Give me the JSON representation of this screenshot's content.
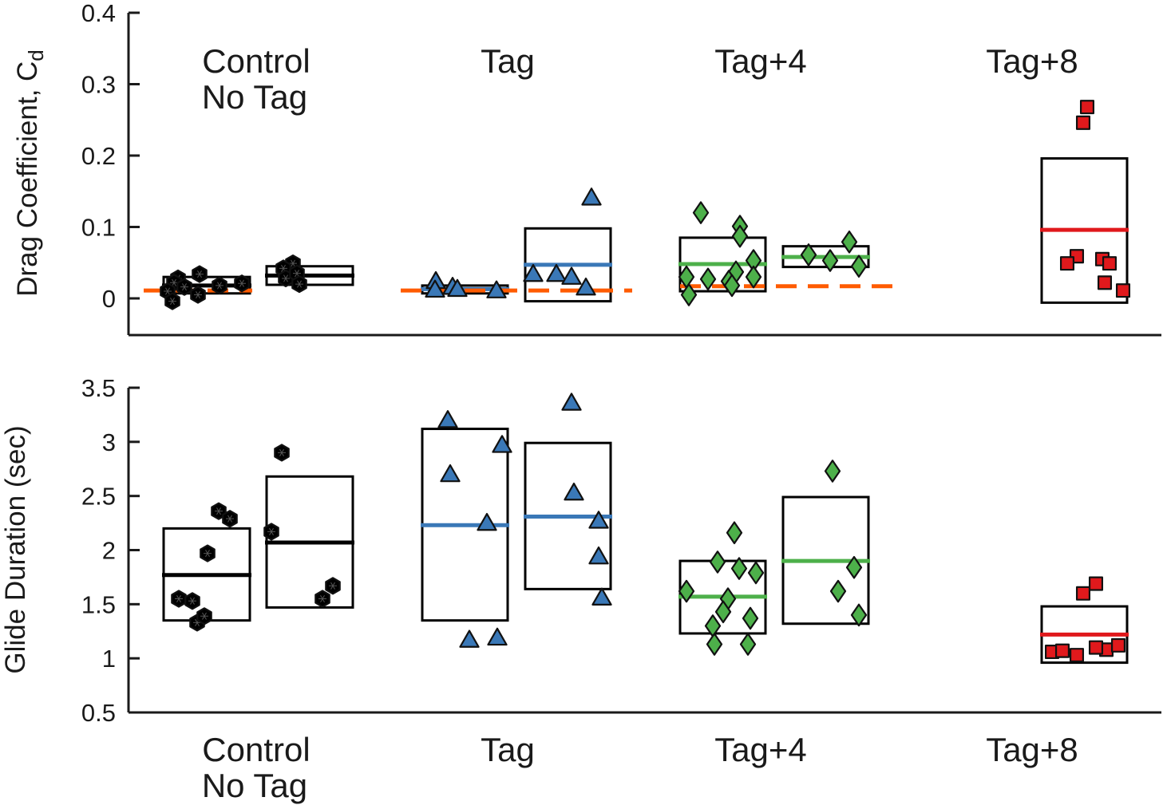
{
  "colors": {
    "control": "#000000",
    "tag": "#3a78b7",
    "tag4": "#4db04a",
    "tag8": "#e0191c",
    "reference": "#ff5b00",
    "marker_edge": "#111111"
  },
  "group_labels": [
    {
      "id": "control",
      "lines": [
        "Control",
        "No Tag"
      ]
    },
    {
      "id": "tag",
      "lines": [
        "Tag"
      ]
    },
    {
      "id": "tag4",
      "lines": [
        "Tag+4"
      ]
    },
    {
      "id": "tag8",
      "lines": [
        "Tag+8"
      ]
    }
  ],
  "chart_data": [
    {
      "type": "scatter",
      "panel": "top",
      "title": "",
      "xlabel": "",
      "ylabel": "Drag Coefficient, C",
      "ylabel_subscript": "d",
      "ylim": [
        -0.05,
        0.4
      ],
      "yticks": [
        0,
        0.1,
        0.2,
        0.3,
        0.4
      ],
      "ytick_labels": [
        "0",
        "0.1",
        "0.2",
        "0.3",
        "0.4"
      ],
      "grid": false,
      "reference_lines": [
        {
          "group": "control",
          "value": 0.011
        },
        {
          "group": "tag",
          "value": 0.011
        },
        {
          "group": "tag4",
          "value": 0.017
        }
      ],
      "series": [
        {
          "group": "control",
          "subgroup": 1,
          "marker": "hexagram",
          "mean": 0.018,
          "box": [
            0.007,
            0.03
          ],
          "points": [
            0.028,
            0.022,
            0.016,
            0.01,
            0.005,
            -0.004,
            0.034,
            0.018,
            0.021
          ]
        },
        {
          "group": "control",
          "subgroup": 2,
          "marker": "hexagram",
          "mean": 0.032,
          "box": [
            0.019,
            0.045
          ],
          "points": [
            0.049,
            0.042,
            0.028,
            0.035,
            0.02
          ]
        },
        {
          "group": "tag",
          "subgroup": 1,
          "marker": "triangle",
          "mean": 0.013,
          "box": [
            0.007,
            0.018
          ],
          "points": [
            0.024,
            0.012,
            0.016,
            0.013,
            0.011
          ]
        },
        {
          "group": "tag",
          "subgroup": 2,
          "marker": "triangle",
          "mean": 0.047,
          "box": [
            -0.004,
            0.098
          ],
          "points": [
            0.141,
            0.034,
            0.034,
            0.015,
            0.03
          ]
        },
        {
          "group": "tag4",
          "subgroup": 1,
          "marker": "diamond",
          "mean": 0.048,
          "box": [
            0.01,
            0.085
          ],
          "points": [
            0.12,
            0.101,
            0.087,
            0.053,
            0.037,
            0.03,
            0.03,
            0.024,
            0.027,
            0.018,
            0.005
          ]
        },
        {
          "group": "tag4",
          "subgroup": 2,
          "marker": "diamond",
          "mean": 0.058,
          "box": [
            0.044,
            0.073
          ],
          "points": [
            0.061,
            0.053,
            0.079,
            0.045
          ]
        },
        {
          "group": "tag8",
          "subgroup": 1,
          "marker": "square",
          "mean": 0.096,
          "box": [
            -0.006,
            0.196
          ],
          "points": [
            0.268,
            0.246,
            0.059,
            0.049,
            0.055,
            0.049,
            0.022,
            0.011
          ]
        }
      ]
    },
    {
      "type": "scatter",
      "panel": "bottom",
      "title": "",
      "xlabel": "",
      "ylabel": "Glide Duration (sec)",
      "ylim": [
        0.5,
        3.5
      ],
      "yticks": [
        0.5,
        1,
        1.5,
        2,
        2.5,
        3,
        3.5
      ],
      "ytick_labels": [
        "0.5",
        "1",
        "1.5",
        "2",
        "2.5",
        "3",
        "3.5"
      ],
      "grid": false,
      "series": [
        {
          "group": "control",
          "subgroup": 1,
          "marker": "hexagram",
          "mean": 1.77,
          "box": [
            1.35,
            2.2
          ],
          "points": [
            2.36,
            2.29,
            1.97,
            1.55,
            1.53,
            1.33,
            1.39
          ]
        },
        {
          "group": "control",
          "subgroup": 2,
          "marker": "hexagram",
          "mean": 2.07,
          "box": [
            1.47,
            2.68
          ],
          "points": [
            2.9,
            2.17,
            1.67,
            1.55
          ]
        },
        {
          "group": "tag",
          "subgroup": 1,
          "marker": "triangle",
          "mean": 2.23,
          "box": [
            1.35,
            3.12
          ],
          "points": [
            3.2,
            2.7,
            2.97,
            2.25,
            1.17,
            1.19
          ]
        },
        {
          "group": "tag",
          "subgroup": 2,
          "marker": "triangle",
          "mean": 2.31,
          "box": [
            1.64,
            2.99
          ],
          "points": [
            3.36,
            2.53,
            2.27,
            1.94,
            1.56
          ]
        },
        {
          "group": "tag4",
          "subgroup": 1,
          "marker": "diamond",
          "mean": 1.57,
          "box": [
            1.23,
            1.9
          ],
          "points": [
            2.16,
            1.89,
            1.83,
            1.79,
            1.62,
            1.55,
            1.43,
            1.37,
            1.3,
            1.13,
            1.13
          ]
        },
        {
          "group": "tag4",
          "subgroup": 2,
          "marker": "diamond",
          "mean": 1.9,
          "box": [
            1.32,
            2.49
          ],
          "points": [
            2.73,
            1.84,
            1.62,
            1.4
          ]
        },
        {
          "group": "tag8",
          "subgroup": 1,
          "marker": "square",
          "mean": 1.22,
          "box": [
            0.96,
            1.48
          ],
          "points": [
            1.69,
            1.6,
            1.06,
            1.07,
            1.03,
            1.08,
            1.1,
            1.12
          ]
        }
      ]
    }
  ]
}
